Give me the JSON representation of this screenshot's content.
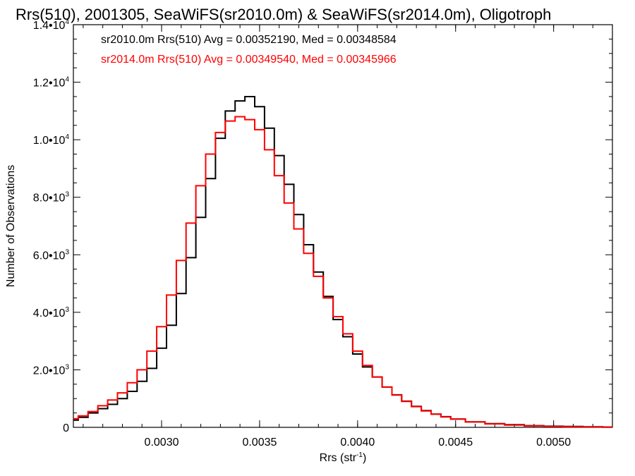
{
  "chart_data": {
    "type": "line",
    "title": "Rrs(510), 2001305, SeaWiFS(sr2010.0m) & SeaWiFS(sr2014.0m), Oligotroph",
    "xlabel": "Rrs (str",
    "xlabel_sup": "-1",
    "xlabel_end": ")",
    "ylabel": "Number of Observations",
    "xlim": [
      0.00255,
      0.0053
    ],
    "ylim": [
      0,
      14000
    ],
    "x_ticks": [
      {
        "value": 0.003,
        "label": "0.0030"
      },
      {
        "value": 0.0035,
        "label": "0.0035"
      },
      {
        "value": 0.004,
        "label": "0.0040"
      },
      {
        "value": 0.0045,
        "label": "0.0045"
      },
      {
        "value": 0.005,
        "label": "0.0050"
      }
    ],
    "y_ticks": [
      {
        "value": 0,
        "base": "0",
        "sup": ""
      },
      {
        "value": 2000,
        "base": "2.0•10",
        "sup": "3"
      },
      {
        "value": 4000,
        "base": "4.0•10",
        "sup": "3"
      },
      {
        "value": 6000,
        "base": "6.0•10",
        "sup": "3"
      },
      {
        "value": 8000,
        "base": "8.0•10",
        "sup": "3"
      },
      {
        "value": 10000,
        "base": "1.0•10",
        "sup": "4"
      },
      {
        "value": 12000,
        "base": "1.2•10",
        "sup": "4"
      },
      {
        "value": 14000,
        "base": "1.4•10",
        "sup": "4"
      }
    ],
    "grid": false,
    "series": [
      {
        "annotation": "sr2010.0m Rrs(510) Avg = 0.00352190, Med = 0.00348584",
        "color": "#000000",
        "x": [
          0.00255,
          0.0026,
          0.00265,
          0.0027,
          0.00275,
          0.0028,
          0.00285,
          0.0029,
          0.00295,
          0.003,
          0.00305,
          0.0031,
          0.00315,
          0.0032,
          0.00325,
          0.0033,
          0.00335,
          0.0034,
          0.00345,
          0.0035,
          0.00355,
          0.0036,
          0.00365,
          0.0037,
          0.00375,
          0.0038,
          0.00385,
          0.0039,
          0.00395,
          0.004,
          0.00405,
          0.0041,
          0.00415,
          0.0042,
          0.00425,
          0.0043,
          0.00435,
          0.0044,
          0.00445,
          0.0045,
          0.0046,
          0.0047,
          0.0048,
          0.0049,
          0.005,
          0.0051,
          0.0052,
          0.0053
        ],
        "y": [
          250,
          350,
          500,
          650,
          800,
          1000,
          1250,
          1600,
          2050,
          2750,
          3550,
          4650,
          5900,
          7300,
          8650,
          10050,
          11000,
          11350,
          11500,
          11150,
          10400,
          9450,
          8450,
          7400,
          6350,
          5400,
          4550,
          3750,
          3150,
          2550,
          2100,
          1750,
          1400,
          1130,
          910,
          730,
          580,
          460,
          370,
          290,
          190,
          130,
          90,
          60,
          40,
          30,
          20,
          10
        ]
      },
      {
        "annotation": "sr2014.0m Rrs(510) Avg = 0.00349540, Med = 0.00345966",
        "color": "#ff0000",
        "x": [
          0.00255,
          0.0026,
          0.00265,
          0.0027,
          0.00275,
          0.0028,
          0.00285,
          0.0029,
          0.00295,
          0.003,
          0.00305,
          0.0031,
          0.00315,
          0.0032,
          0.00325,
          0.0033,
          0.00335,
          0.0034,
          0.00345,
          0.0035,
          0.00355,
          0.0036,
          0.00365,
          0.0037,
          0.00375,
          0.0038,
          0.00385,
          0.0039,
          0.00395,
          0.004,
          0.00405,
          0.0041,
          0.00415,
          0.0042,
          0.00425,
          0.0043,
          0.00435,
          0.0044,
          0.00445,
          0.0045,
          0.0046,
          0.0047,
          0.0048,
          0.0049,
          0.005,
          0.0051,
          0.0052,
          0.0053
        ],
        "y": [
          300,
          400,
          550,
          750,
          950,
          1200,
          1550,
          2000,
          2650,
          3500,
          4600,
          5800,
          7100,
          8400,
          9500,
          10250,
          10650,
          10800,
          10700,
          10350,
          9650,
          8750,
          7800,
          6900,
          6050,
          5250,
          4500,
          3850,
          3250,
          2650,
          2150,
          1750,
          1400,
          1120,
          900,
          720,
          570,
          460,
          360,
          290,
          190,
          120,
          80,
          50,
          30,
          20,
          10,
          5
        ]
      }
    ]
  }
}
